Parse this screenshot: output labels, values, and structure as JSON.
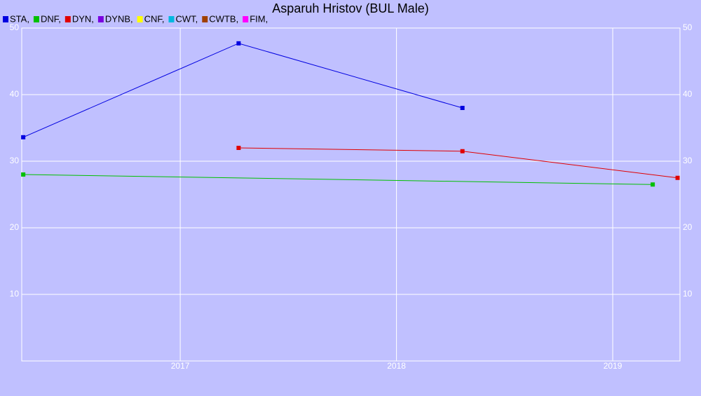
{
  "chart_data": {
    "type": "line",
    "title": "Asparuh Hristov (BUL Male)",
    "series": [
      {
        "name": "STA,",
        "color": "#0000e0",
        "x": [
          2016.274,
          2017.27,
          2018.305
        ],
        "values": [
          33.6,
          47.7,
          38.0
        ]
      },
      {
        "name": "DNF,",
        "color": "#00c000",
        "x": [
          2016.274,
          2019.185
        ],
        "values": [
          28.0,
          26.5
        ]
      },
      {
        "name": "DYN,",
        "color": "#e00000",
        "x": [
          2017.27,
          2018.305,
          2019.3
        ],
        "values": [
          32.0,
          31.5,
          27.5
        ]
      },
      {
        "name": "DYNB,",
        "color": "#7a00e0",
        "x": [],
        "values": []
      },
      {
        "name": "CNF,",
        "color": "#ffff00",
        "x": [],
        "values": []
      },
      {
        "name": "CWT,",
        "color": "#00b8e0",
        "x": [],
        "values": []
      },
      {
        "name": "CWTB,",
        "color": "#a04000",
        "x": [],
        "values": []
      },
      {
        "name": "FIM,",
        "color": "#ff00ff",
        "x": [],
        "values": []
      }
    ],
    "xlim": [
      2016.267,
      2019.311
    ],
    "xticks": [
      2017,
      2018,
      2019
    ],
    "ylim": [
      0,
      50
    ],
    "yticks": [
      10,
      20,
      30,
      40,
      50
    ],
    "grid": true
  }
}
